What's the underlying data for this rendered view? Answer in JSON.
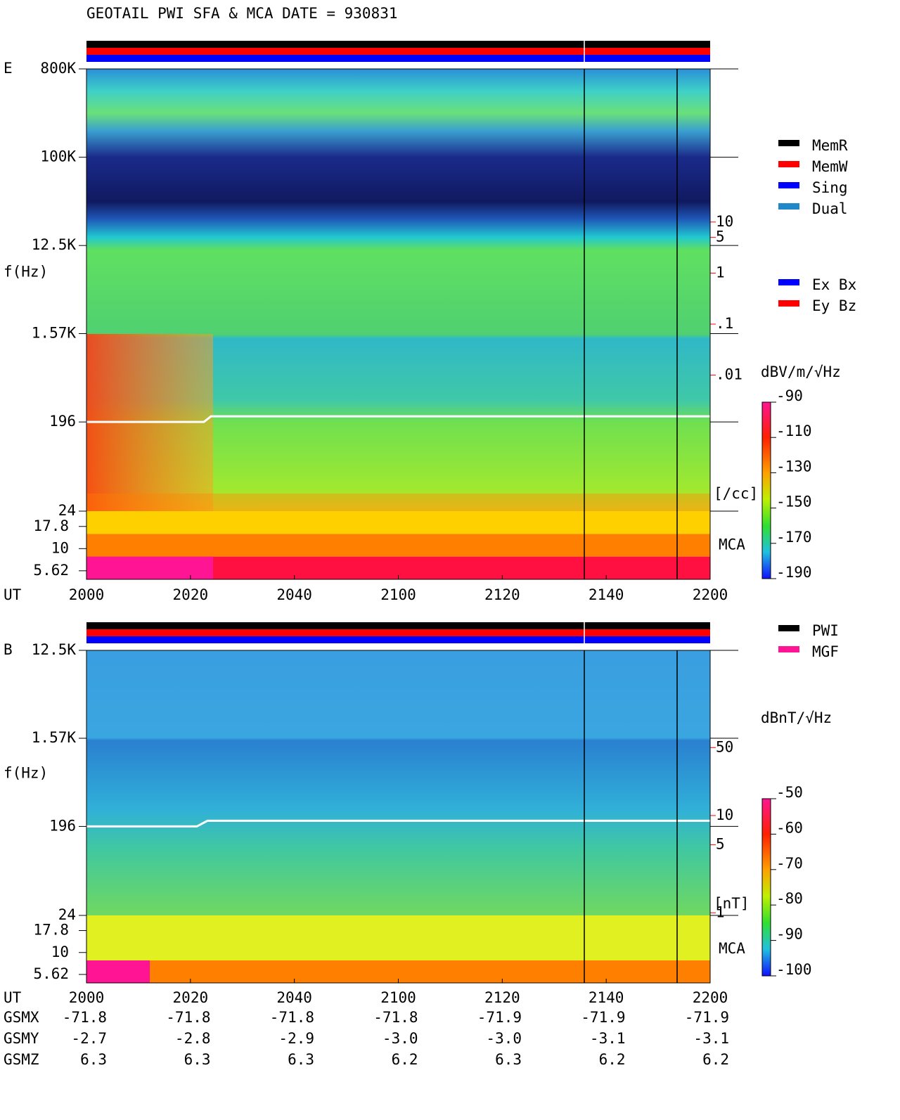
{
  "title": "GEOTAIL  PWI SFA & MCA   DATE = 930831",
  "chart_data": [
    {
      "type": "spectrogram",
      "panel": "E",
      "ylabel": "f(Hz)",
      "xlabel": "UT",
      "x_labels": [
        "2000",
        "2020",
        "2040",
        "2100",
        "2120",
        "2140",
        "2200"
      ],
      "log_y": true,
      "ylim": [
        24,
        800000
      ],
      "yticks": [
        {
          "value": 800000,
          "label": "800K"
        },
        {
          "value": 100000,
          "label": "100K"
        },
        {
          "value": 12500,
          "label": "12.5K"
        },
        {
          "value": 1570,
          "label": "1.57K"
        },
        196,
        24
      ],
      "mca_label": "MCA",
      "mca_ylim": [
        4.5,
        26.5
      ],
      "mca_yticks": [
        17.8,
        10,
        5.62
      ],
      "y2lim": [
        1e-06,
        10000
      ],
      "y2ticks": [
        10,
        5,
        1,
        {
          "value": 0.1,
          "label": ".1"
        },
        {
          "value": 0.01,
          "label": ".01"
        }
      ],
      "y2_unit": "[/cc]",
      "y2_color": "#ff0000",
      "status_bars": [
        "#000000",
        "#ff0000",
        "#0000ff"
      ],
      "legend": [
        {
          "name": "MemR",
          "color": "#000000"
        },
        {
          "name": "MemW",
          "color": "#ff0000"
        },
        {
          "name": "Sing",
          "color": "#0000ff"
        },
        {
          "name": "Dual",
          "color": "#1e88c8"
        }
      ],
      "legend2": [
        {
          "name": "Ex Bx",
          "color": "#0000ff"
        },
        {
          "name": "Ey Bz",
          "color": "#ff0000"
        }
      ],
      "colorbar_label": "dBV/m/√Hz",
      "clim": [
        -190,
        -90
      ],
      "cticks": [
        -90,
        -110,
        -130,
        -150,
        -170,
        -190
      ]
    },
    {
      "type": "spectrogram",
      "panel": "B",
      "ylabel": "f(Hz)",
      "xlabel": "UT",
      "x_labels": [
        "2000",
        "2020",
        "2040",
        "2100",
        "2120",
        "2140",
        "2200"
      ],
      "log_y": true,
      "ylim": [
        24,
        12500
      ],
      "yticks": [
        {
          "value": 12500,
          "label": "12.5K"
        },
        {
          "value": 1570,
          "label": "1.57K"
        },
        196,
        24
      ],
      "mca_label": "MCA",
      "mca_ylim": [
        4.5,
        26.5
      ],
      "mca_yticks": [
        17.8,
        10,
        5.62
      ],
      "y2lim": [
        0.19,
        500
      ],
      "y2ticks": [
        50,
        10,
        5,
        1
      ],
      "y2_unit": "[nT]",
      "y2_color": "#ff0000",
      "status_bars": [
        "#000000",
        "#ff0000",
        "#0000ff"
      ],
      "legend": [
        {
          "name": "PWI",
          "color": "#000000"
        },
        {
          "name": "MGF",
          "color": "#ff1493"
        }
      ],
      "colorbar_label": "dBnT/√Hz",
      "clim": [
        -100,
        -50
      ],
      "cticks": [
        -50,
        -60,
        -70,
        -80,
        -90,
        -100
      ]
    }
  ],
  "orbit": {
    "rows": [
      {
        "name": "GSMX",
        "values": [
          "-71.8",
          "-71.8",
          "-71.8",
          "-71.8",
          "-71.9",
          "-71.9",
          "-71.9"
        ]
      },
      {
        "name": "GSMY",
        "values": [
          "-2.7",
          "-2.8",
          "-2.9",
          "-3.0",
          "-3.0",
          "-3.1",
          "-3.1"
        ]
      },
      {
        "name": "GSMZ",
        "values": [
          "6.3",
          "6.3",
          "6.3",
          "6.2",
          "6.3",
          "6.2",
          "6.2"
        ]
      }
    ]
  }
}
